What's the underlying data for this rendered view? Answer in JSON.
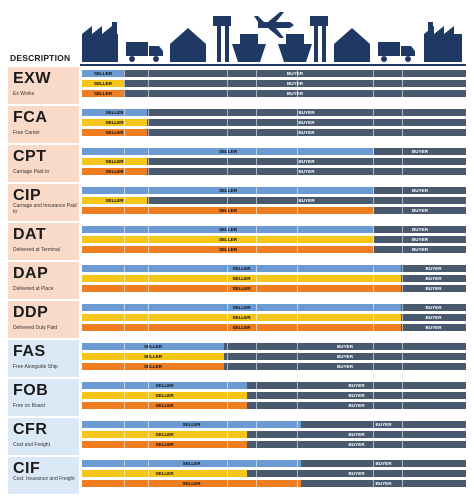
{
  "header": {
    "description": "DESCRIPTION"
  },
  "icons": [
    "factory-icon",
    "truck-icon",
    "warehouse-icon",
    "port-crane-icon",
    "ship-icon",
    "airplane-icon",
    "ship-icon",
    "port-crane-icon",
    "warehouse-icon",
    "truck-icon",
    "factory-icon"
  ],
  "colors": {
    "seller_1": "#6b9bd2",
    "seller_2": "#f5c518",
    "seller_3": "#ef7d22",
    "buyer": "#495a6e",
    "navy": "#1f3864"
  },
  "terms": [
    {
      "code": "EXW",
      "full": "Ex Works",
      "bg": "#f9d9c8",
      "rows": [
        [
          "SELLER",
          "BUYER"
        ],
        [
          "SELLER",
          "BUYER"
        ],
        [
          "SELLER",
          "BUYER"
        ]
      ],
      "split": [
        0.11,
        0.11,
        0.11
      ]
    },
    {
      "code": "FCA",
      "full": "Free Carrier",
      "bg": "#f9d9c8",
      "rows": [
        [
          "SELLER",
          "BUYER"
        ],
        [
          "SELLER",
          "BUYER"
        ],
        [
          "SELLER",
          "BUYER"
        ]
      ],
      "split": [
        0.17,
        0.17,
        0.17
      ]
    },
    {
      "code": "CPT",
      "full": "Carriage Paid to",
      "bg": "#f9d9c8",
      "rows": [
        [
          "SELLER",
          "BUYER"
        ],
        [
          "SELLER",
          "BUYER"
        ],
        [
          "SELLER",
          "BUYER"
        ]
      ],
      "split": [
        0.76,
        0.17,
        0.17
      ]
    },
    {
      "code": "CIP",
      "full": "Carriage and Insurance Paid to",
      "bg": "#f9d9c8",
      "rows": [
        [
          "SELLER",
          "BUYER"
        ],
        [
          "SELLER",
          "BUYER"
        ],
        [
          "SELLER",
          "BUYER"
        ]
      ],
      "split": [
        0.76,
        0.17,
        0.76
      ]
    },
    {
      "code": "DAT",
      "full": "Delivered at Terminal",
      "bg": "#f9d9c8",
      "rows": [
        [
          "SELLER",
          "BUYER"
        ],
        [
          "SELLER",
          "BUYER"
        ],
        [
          "SELLER",
          "BUYER"
        ]
      ],
      "split": [
        0.76,
        0.76,
        0.76
      ]
    },
    {
      "code": "DAP",
      "full": "Delivered at Place",
      "bg": "#f9d9c8",
      "rows": [
        [
          "SELLER",
          "BUYER"
        ],
        [
          "SELLER",
          "BUYER"
        ],
        [
          "SELLER",
          "BUYER"
        ]
      ],
      "split": [
        0.83,
        0.83,
        0.83
      ]
    },
    {
      "code": "DDP",
      "full": "Delivered Duty Paid",
      "bg": "#f9d9c8",
      "rows": [
        [
          "SELLER",
          "BUYER"
        ],
        [
          "SELLER",
          "BUYER"
        ],
        [
          "SELLER",
          "BUYER"
        ]
      ],
      "split": [
        0.83,
        0.83,
        0.83
      ]
    },
    {
      "code": "FAS",
      "full": "Free Alongside Ship",
      "bg": "#dbe8f5",
      "rows": [
        [
          "SELLER",
          "BUYER"
        ],
        [
          "SELLER",
          "BUYER"
        ],
        [
          "SELLER",
          "BUYER"
        ]
      ],
      "split": [
        0.37,
        0.37,
        0.37
      ]
    },
    {
      "code": "FOB",
      "full": "Free on Board",
      "bg": "#dbe8f5",
      "rows": [
        [
          "SELLER",
          "BUYER"
        ],
        [
          "SELLER",
          "BUYER"
        ],
        [
          "SELLER",
          "BUYER"
        ]
      ],
      "split": [
        0.43,
        0.43,
        0.43
      ]
    },
    {
      "code": "CFR",
      "full": "Cost and Freight",
      "bg": "#dbe8f5",
      "rows": [
        [
          "SELLER",
          "BUYER"
        ],
        [
          "SELLER",
          "BUYER"
        ],
        [
          "SELLER",
          "BUYER"
        ]
      ],
      "split": [
        0.57,
        0.43,
        0.43
      ]
    },
    {
      "code": "CIF",
      "full": "Cost, Insurance and Freight",
      "bg": "#dbe8f5",
      "rows": [
        [
          "SELLER",
          "BUYER"
        ],
        [
          "SELLER",
          "BUYER"
        ],
        [
          "SELLER",
          "BUYER"
        ]
      ],
      "split": [
        0.57,
        0.43,
        0.57
      ]
    }
  ]
}
